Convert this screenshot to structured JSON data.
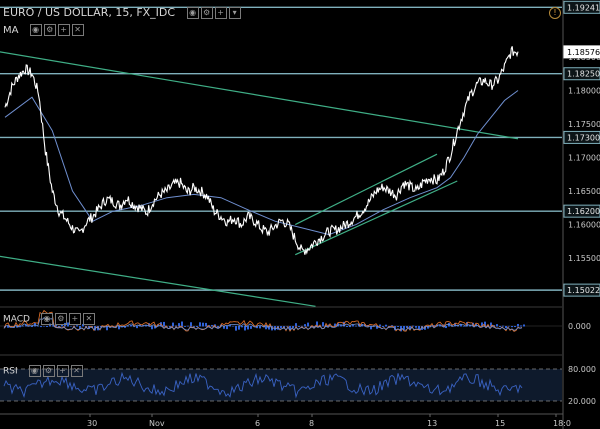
{
  "header": {
    "title": "EURO / US DOLLAR, 15, FX_IDC",
    "ma_label": "MA",
    "macd_label": "MACD",
    "rsi_label": "RSI",
    "alert_glyph": "!"
  },
  "colors": {
    "background": "#000000",
    "price": "#ffffff",
    "ma": "#6f8fd0",
    "hline": "#7fb0bc",
    "trend": "#3fae86",
    "macd_line": "#e8742a",
    "macd_signal": "#6f8fd0",
    "macd_hist": "#2f62d8",
    "rsi": "#3a63c4"
  },
  "chart_data": [
    {
      "type": "line",
      "title": "EURO / US DOLLAR, 15, FX_IDC",
      "y_axis": {
        "min": 1.148,
        "max": 1.1935,
        "ticks": [
          "1.18500",
          "1.18000",
          "1.17500",
          "1.17000",
          "1.16500",
          "1.16000",
          "1.15500"
        ]
      },
      "x_axis": {
        "ticks": [
          "30",
          "Nov",
          "6",
          "8",
          "13",
          "15",
          "18:0"
        ]
      },
      "price_series": {
        "name": "EUR/USD",
        "x": [
          0,
          1,
          2,
          3,
          4,
          5,
          6,
          7,
          8,
          9,
          10,
          11,
          12,
          13,
          14,
          15,
          16,
          17,
          18,
          19,
          20,
          21,
          22,
          23,
          24,
          25,
          26,
          27,
          28,
          29,
          30,
          31,
          32,
          33,
          34,
          35,
          36,
          37,
          38,
          39,
          40,
          41,
          42,
          43,
          44,
          45,
          46,
          47,
          48,
          49,
          50,
          51,
          52,
          53,
          54,
          55,
          56,
          57,
          58,
          59,
          60,
          61,
          62,
          63,
          64,
          65,
          66,
          67,
          68,
          69,
          70,
          71,
          72,
          73,
          74,
          75,
          76
        ],
        "y": [
          1.1775,
          1.1805,
          1.1822,
          1.1832,
          1.1825,
          1.1795,
          1.171,
          1.165,
          1.162,
          1.1608,
          1.1595,
          1.1585,
          1.1603,
          1.1612,
          1.1625,
          1.1638,
          1.1635,
          1.1628,
          1.164,
          1.163,
          1.1625,
          1.1618,
          1.1635,
          1.1645,
          1.165,
          1.166,
          1.1662,
          1.1648,
          1.1655,
          1.165,
          1.1642,
          1.162,
          1.1612,
          1.1604,
          1.161,
          1.16,
          1.1612,
          1.1605,
          1.1594,
          1.1588,
          1.1598,
          1.1606,
          1.16,
          1.1578,
          1.156,
          1.1565,
          1.1575,
          1.1582,
          1.159,
          1.1592,
          1.1597,
          1.1604,
          1.1612,
          1.1622,
          1.1635,
          1.165,
          1.1656,
          1.165,
          1.1644,
          1.1662,
          1.1657,
          1.165,
          1.1664,
          1.167,
          1.1665,
          1.168,
          1.1705,
          1.174,
          1.177,
          1.1795,
          1.181,
          1.1815,
          1.1808,
          1.1815,
          1.1835,
          1.1858,
          1.1858
        ]
      },
      "ma_series": {
        "x": [
          0,
          4,
          7,
          10,
          13,
          16,
          20,
          24,
          28,
          32,
          36,
          40,
          44,
          48,
          52,
          56,
          60,
          64,
          66,
          68,
          70,
          72,
          74,
          76
        ],
        "y": [
          1.176,
          1.179,
          1.174,
          1.165,
          1.1605,
          1.162,
          1.1628,
          1.164,
          1.1645,
          1.164,
          1.1622,
          1.1605,
          1.1595,
          1.1585,
          1.16,
          1.1622,
          1.164,
          1.1655,
          1.167,
          1.17,
          1.1735,
          1.176,
          1.1785,
          1.18
        ]
      },
      "horizontal_levels": [
        "1.19241",
        "1.18250",
        "1.17300",
        "1.16200",
        "1.15022"
      ],
      "last_price": "1.18576",
      "trendlines": [
        {
          "x1": -1,
          "y1": 1.1858,
          "x2": 76,
          "y2": 1.1728
        },
        {
          "x1": -1,
          "y1": 1.1553,
          "x2": 46,
          "y2": 1.1478
        },
        {
          "x1": 43,
          "y1": 1.1555,
          "x2": 67,
          "y2": 1.1665
        },
        {
          "x1": 43,
          "y1": 1.16,
          "x2": 64,
          "y2": 1.1705
        }
      ]
    },
    {
      "type": "line",
      "title": "MACD",
      "y_axis": {
        "ticks": [
          "0.000"
        ]
      }
    },
    {
      "type": "line",
      "title": "RSI",
      "y_axis": {
        "ticks": [
          "80.000",
          "20.000"
        ]
      }
    }
  ]
}
